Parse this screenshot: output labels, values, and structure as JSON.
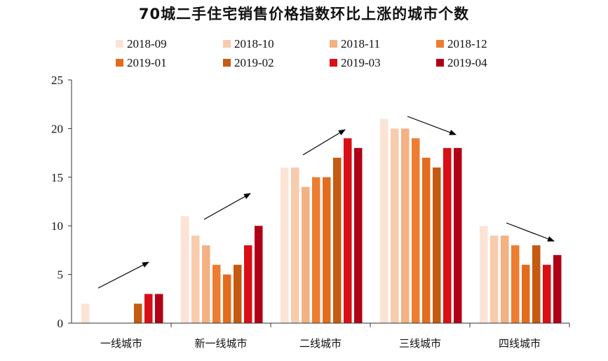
{
  "chart_data": {
    "type": "bar",
    "title": "70城二手住宅销售价格指数环比上涨的城市个数",
    "categories": [
      "一线城市",
      "新一线城市",
      "二线城市",
      "三线城市",
      "四线城市"
    ],
    "series": [
      {
        "name": "2018-09",
        "color": "#FBE3D6",
        "values": [
          2,
          11,
          16,
          21,
          10
        ]
      },
      {
        "name": "2018-10",
        "color": "#F8CBAD",
        "values": [
          0,
          9,
          16,
          20,
          9
        ]
      },
      {
        "name": "2018-11",
        "color": "#F4B183",
        "values": [
          0,
          8,
          14,
          20,
          9
        ]
      },
      {
        "name": "2018-12",
        "color": "#ED7D31",
        "values": [
          0,
          6,
          15,
          19,
          8
        ]
      },
      {
        "name": "2019-01",
        "color": "#E36C1E",
        "values": [
          0,
          5,
          15,
          17,
          6
        ]
      },
      {
        "name": "2019-02",
        "color": "#C55A11",
        "values": [
          2,
          6,
          17,
          16,
          8
        ]
      },
      {
        "name": "2019-03",
        "color": "#D90E16",
        "values": [
          3,
          8,
          19,
          18,
          6
        ]
      },
      {
        "name": "2019-04",
        "color": "#B00016",
        "values": [
          3,
          10,
          18,
          18,
          7
        ]
      }
    ],
    "ylim": [
      0,
      25
    ],
    "yticks": [
      0,
      5,
      10,
      15,
      20,
      25
    ],
    "grid": false,
    "legend": "top",
    "trend_arrows": [
      "up",
      "up",
      "up",
      "down",
      "down"
    ]
  }
}
